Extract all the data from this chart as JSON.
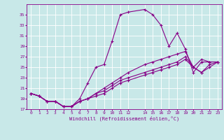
{
  "xlabel": "Windchill (Refroidissement éolien,°C)",
  "background_color": "#c8e8e8",
  "line_color": "#880088",
  "grid_color": "#ffffff",
  "xlim": [
    -0.5,
    23.5
  ],
  "ylim": [
    17,
    37
  ],
  "yticks": [
    17,
    19,
    21,
    23,
    25,
    27,
    29,
    31,
    33,
    35
  ],
  "xticks": [
    0,
    1,
    2,
    3,
    4,
    5,
    6,
    7,
    8,
    9,
    10,
    11,
    12,
    14,
    15,
    16,
    17,
    18,
    19,
    20,
    21,
    22,
    23
  ],
  "line1_x": [
    0,
    1,
    2,
    3,
    4,
    5,
    6,
    7,
    8,
    9,
    10,
    11,
    12,
    14,
    15,
    16,
    17,
    18,
    19,
    20,
    21,
    22,
    23
  ],
  "line1_y": [
    20,
    19.5,
    18.5,
    18.5,
    17.5,
    17.5,
    19,
    22,
    25,
    25.5,
    30,
    35,
    35.5,
    36,
    35,
    33,
    29,
    31.5,
    28.5,
    24,
    26,
    26,
    26
  ],
  "line2_x": [
    0,
    1,
    2,
    3,
    4,
    5,
    6,
    7,
    8,
    9,
    10,
    11,
    12,
    14,
    15,
    16,
    17,
    18,
    19,
    20,
    21,
    22,
    23
  ],
  "line2_y": [
    20,
    19.5,
    18.5,
    18.5,
    17.5,
    17.5,
    18.5,
    19,
    20,
    21,
    22,
    23,
    24,
    25.5,
    26,
    26.5,
    27,
    27.5,
    28,
    25,
    26.5,
    26,
    26
  ],
  "line3_x": [
    0,
    1,
    2,
    3,
    4,
    5,
    6,
    7,
    8,
    9,
    10,
    11,
    12,
    14,
    15,
    16,
    17,
    18,
    19,
    20,
    21,
    22,
    23
  ],
  "line3_y": [
    20,
    19.5,
    18.5,
    18.5,
    17.5,
    17.5,
    18.5,
    19,
    20,
    20.5,
    21.5,
    22.5,
    23,
    24,
    24.5,
    25,
    25.5,
    26,
    27,
    25,
    24,
    25.5,
    26
  ],
  "line4_x": [
    0,
    1,
    2,
    3,
    4,
    5,
    6,
    7,
    8,
    9,
    10,
    11,
    12,
    14,
    15,
    16,
    17,
    18,
    19,
    20,
    21,
    22,
    23
  ],
  "line4_y": [
    20,
    19.5,
    18.5,
    18.5,
    17.5,
    17.5,
    18.5,
    19,
    19.5,
    20,
    21,
    22,
    22.5,
    23.5,
    24,
    24.5,
    25,
    25.5,
    26.5,
    25,
    24,
    25,
    26
  ]
}
